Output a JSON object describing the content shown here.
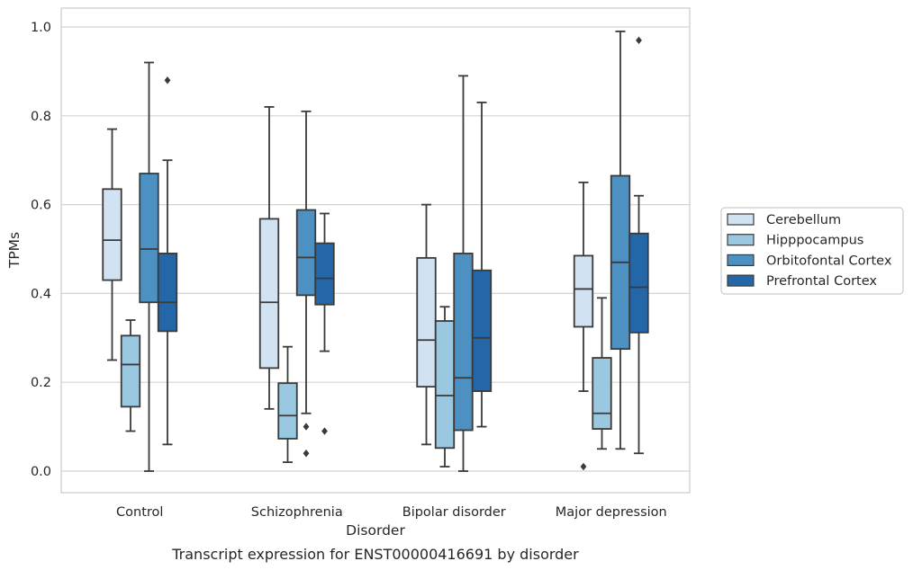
{
  "chart_data": {
    "type": "box",
    "xlabel": "Disorder",
    "ylabel": "TPMs",
    "caption": "Transcript expression for ENST00000416691 by disorder",
    "ylim": [
      -0.05,
      1.04
    ],
    "yticks": [
      "0.0",
      "0.2",
      "0.4",
      "0.6",
      "0.8",
      "1.0"
    ],
    "grid": "horizontal",
    "legend_position": "right",
    "categories": [
      "Control",
      "Schizophrenia",
      "Bipolar disorder",
      "Major depression"
    ],
    "series": [
      {
        "name": "Cerebellum",
        "color": "#d1e2f2",
        "boxes": [
          {
            "whislo": 0.25,
            "q1": 0.43,
            "med": 0.52,
            "q3": 0.635,
            "whishi": 0.77,
            "fliers": []
          },
          {
            "whislo": 0.14,
            "q1": 0.232,
            "med": 0.38,
            "q3": 0.568,
            "whishi": 0.82,
            "fliers": []
          },
          {
            "whislo": 0.06,
            "q1": 0.19,
            "med": 0.295,
            "q3": 0.48,
            "whishi": 0.6,
            "fliers": []
          },
          {
            "whislo": 0.18,
            "q1": 0.325,
            "med": 0.41,
            "q3": 0.485,
            "whishi": 0.65,
            "fliers": [
              0.01
            ]
          }
        ]
      },
      {
        "name": "Hipppocampus",
        "color": "#9ac8e0",
        "boxes": [
          {
            "whislo": 0.09,
            "q1": 0.145,
            "med": 0.24,
            "q3": 0.305,
            "whishi": 0.34,
            "fliers": []
          },
          {
            "whislo": 0.02,
            "q1": 0.073,
            "med": 0.125,
            "q3": 0.198,
            "whishi": 0.28,
            "fliers": []
          },
          {
            "whislo": 0.01,
            "q1": 0.052,
            "med": 0.17,
            "q3": 0.338,
            "whishi": 0.37,
            "fliers": []
          },
          {
            "whislo": 0.05,
            "q1": 0.095,
            "med": 0.13,
            "q3": 0.255,
            "whishi": 0.39,
            "fliers": []
          }
        ]
      },
      {
        "name": "Orbitofontal Cortex",
        "color": "#4d90c2",
        "boxes": [
          {
            "whislo": 0.0,
            "q1": 0.38,
            "med": 0.5,
            "q3": 0.67,
            "whishi": 0.92,
            "fliers": []
          },
          {
            "whislo": 0.13,
            "q1": 0.396,
            "med": 0.481,
            "q3": 0.588,
            "whishi": 0.81,
            "fliers": [
              0.1,
              0.04
            ]
          },
          {
            "whislo": 0.0,
            "q1": 0.092,
            "med": 0.21,
            "q3": 0.49,
            "whishi": 0.89,
            "fliers": []
          },
          {
            "whislo": 0.05,
            "q1": 0.275,
            "med": 0.47,
            "q3": 0.665,
            "whishi": 0.99,
            "fliers": []
          }
        ]
      },
      {
        "name": "Prefrontal Cortex",
        "color": "#2467a8",
        "boxes": [
          {
            "whislo": 0.06,
            "q1": 0.315,
            "med": 0.38,
            "q3": 0.49,
            "whishi": 0.7,
            "fliers": [
              0.88
            ]
          },
          {
            "whislo": 0.27,
            "q1": 0.375,
            "med": 0.434,
            "q3": 0.513,
            "whishi": 0.58,
            "fliers": [
              0.09
            ]
          },
          {
            "whislo": 0.1,
            "q1": 0.18,
            "med": 0.3,
            "q3": 0.452,
            "whishi": 0.83,
            "fliers": []
          },
          {
            "whislo": 0.04,
            "q1": 0.312,
            "med": 0.414,
            "q3": 0.535,
            "whishi": 0.62,
            "fliers": [
              0.97
            ]
          }
        ]
      }
    ]
  }
}
